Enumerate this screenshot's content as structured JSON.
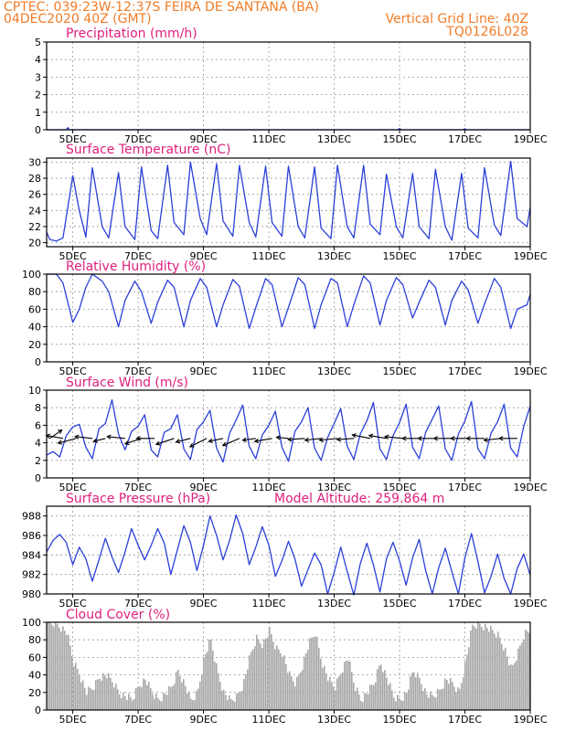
{
  "header": {
    "line1": "CPTEC:  039:23W-12:37S  FEIRA DE SANTANA (BA)",
    "line2": "04DEC2020 40Z (GMT)",
    "right1": "Vertical Grid Line: 40Z",
    "right2": "TQ0126L028"
  },
  "colors": {
    "header": "#f07c28",
    "title": "#e0207e",
    "line": "#2b3fd8",
    "bar": "#a8a8a8",
    "arrow": "#000000"
  },
  "x_axis": {
    "labels": [
      "5DEC",
      "7DEC",
      "9DEC",
      "11DEC",
      "13DEC",
      "15DEC",
      "17DEC",
      "19DEC"
    ],
    "range_days": [
      4.2,
      19.0
    ],
    "label_days": [
      5,
      7,
      9,
      11,
      13,
      15,
      17,
      19
    ]
  },
  "chart_data": [
    {
      "type": "line",
      "title": "Precipitation (mm/h)",
      "ylim": [
        0,
        5
      ],
      "yticks": [
        0,
        1,
        2,
        3,
        4,
        5
      ],
      "series": [
        {
          "name": "Precipitation",
          "x": [
            4.2,
            4.8,
            4.85,
            4.9,
            5.5,
            6.2,
            7.0,
            8.0,
            9.0,
            10.0,
            11.0,
            12.0,
            13.0,
            14.0,
            14.95,
            15.0,
            15.05,
            16.0,
            16.95,
            17.0,
            17.05,
            18.0,
            19.0
          ],
          "values": [
            0,
            0,
            0.12,
            0,
            0,
            0,
            0,
            0,
            0,
            0,
            0,
            0,
            0,
            0,
            0,
            0.07,
            0,
            0,
            0,
            0.05,
            0,
            0,
            0
          ]
        }
      ]
    },
    {
      "type": "line",
      "title": "Surface Temperature (nC)",
      "ylim": [
        19.5,
        30.5
      ],
      "yticks": [
        20,
        22,
        24,
        26,
        28,
        30
      ],
      "series": [
        {
          "name": "Temperature",
          "x": [
            4.2,
            4.3,
            4.5,
            4.7,
            5.0,
            5.2,
            5.4,
            5.6,
            5.9,
            6.1,
            6.4,
            6.6,
            6.9,
            7.1,
            7.4,
            7.6,
            7.9,
            8.1,
            8.4,
            8.6,
            8.9,
            9.1,
            9.4,
            9.6,
            9.9,
            10.1,
            10.4,
            10.6,
            10.9,
            11.1,
            11.4,
            11.6,
            11.9,
            12.1,
            12.4,
            12.6,
            12.9,
            13.1,
            13.4,
            13.6,
            13.9,
            14.1,
            14.4,
            14.6,
            14.9,
            15.1,
            15.4,
            15.6,
            15.9,
            16.1,
            16.4,
            16.6,
            16.9,
            17.1,
            17.4,
            17.6,
            17.9,
            18.1,
            18.4,
            18.6,
            18.9,
            19.0
          ],
          "values": [
            21.3,
            20.4,
            20.2,
            20.6,
            28.3,
            24.0,
            20.7,
            29.3,
            22.0,
            20.6,
            28.7,
            22.0,
            20.4,
            29.4,
            21.5,
            20.5,
            29.6,
            22.5,
            21.0,
            30.0,
            23.0,
            21.0,
            29.8,
            22.7,
            20.8,
            29.6,
            22.5,
            20.7,
            29.5,
            22.5,
            20.8,
            29.5,
            22.0,
            20.6,
            29.4,
            21.8,
            20.5,
            29.6,
            22.0,
            20.6,
            29.6,
            22.3,
            21.0,
            28.5,
            22.0,
            20.6,
            28.6,
            22.0,
            20.5,
            29.1,
            22.0,
            20.3,
            28.6,
            21.8,
            20.6,
            29.3,
            22.2,
            20.9,
            30.1,
            23.0,
            22.0,
            24.4
          ]
        }
      ]
    },
    {
      "type": "line",
      "title": "Relative Humidity (%)",
      "ylim": [
        0,
        100
      ],
      "yticks": [
        0,
        20,
        40,
        60,
        80,
        100
      ],
      "series": [
        {
          "name": "Relative Humidity",
          "x": [
            4.2,
            4.5,
            4.7,
            5.0,
            5.2,
            5.4,
            5.6,
            5.9,
            6.1,
            6.4,
            6.6,
            6.9,
            7.1,
            7.4,
            7.6,
            7.9,
            8.1,
            8.4,
            8.6,
            8.9,
            9.1,
            9.4,
            9.6,
            9.9,
            10.1,
            10.4,
            10.6,
            10.9,
            11.1,
            11.4,
            11.6,
            11.9,
            12.1,
            12.4,
            12.6,
            12.9,
            13.1,
            13.4,
            13.6,
            13.9,
            14.1,
            14.4,
            14.6,
            14.9,
            15.1,
            15.4,
            15.6,
            15.9,
            16.1,
            16.4,
            16.6,
            16.9,
            17.1,
            17.4,
            17.6,
            17.9,
            18.1,
            18.4,
            18.6,
            18.9,
            19.0
          ],
          "values": [
            100,
            100,
            90,
            45,
            60,
            85,
            100,
            92,
            80,
            40,
            70,
            92,
            80,
            44,
            68,
            93,
            85,
            40,
            70,
            95,
            85,
            40,
            65,
            94,
            86,
            38,
            62,
            95,
            88,
            40,
            62,
            96,
            88,
            38,
            65,
            95,
            90,
            40,
            65,
            98,
            90,
            42,
            70,
            96,
            88,
            50,
            68,
            93,
            85,
            42,
            70,
            92,
            82,
            44,
            66,
            95,
            85,
            38,
            60,
            65,
            77
          ]
        }
      ]
    },
    {
      "type": "line",
      "title": "Surface Wind (m/s)",
      "ylim": [
        0,
        10
      ],
      "yticks": [
        0,
        2,
        4,
        6,
        8,
        10
      ],
      "series": [
        {
          "name": "Wind Speed",
          "x": [
            4.2,
            4.4,
            4.6,
            4.8,
            5.0,
            5.2,
            5.4,
            5.6,
            5.8,
            6.0,
            6.2,
            6.4,
            6.6,
            6.8,
            7.0,
            7.2,
            7.4,
            7.6,
            7.8,
            8.0,
            8.2,
            8.4,
            8.6,
            8.8,
            9.0,
            9.2,
            9.4,
            9.6,
            9.8,
            10.0,
            10.2,
            10.4,
            10.6,
            10.8,
            11.0,
            11.2,
            11.4,
            11.6,
            11.8,
            12.0,
            12.2,
            12.4,
            12.6,
            12.8,
            13.0,
            13.2,
            13.4,
            13.6,
            13.8,
            14.0,
            14.2,
            14.4,
            14.6,
            14.8,
            15.0,
            15.2,
            15.4,
            15.6,
            15.8,
            16.0,
            16.2,
            16.4,
            16.6,
            16.8,
            17.0,
            17.2,
            17.4,
            17.6,
            17.8,
            18.0,
            18.2,
            18.4,
            18.6,
            18.8,
            19.0
          ],
          "values": [
            2.6,
            3.0,
            2.4,
            4.8,
            5.8,
            6.1,
            3.5,
            2.2,
            5.6,
            6.2,
            8.9,
            5.0,
            3.2,
            5.3,
            5.9,
            7.2,
            3.2,
            2.4,
            5.2,
            5.6,
            7.2,
            3.3,
            2.1,
            5.5,
            6.4,
            7.7,
            3.4,
            1.8,
            5.1,
            6.6,
            8.3,
            3.6,
            2.2,
            4.9,
            6.0,
            7.6,
            3.5,
            1.9,
            5.3,
            6.4,
            8.0,
            3.4,
            2.0,
            4.6,
            6.2,
            7.9,
            3.6,
            2.1,
            5.0,
            6.5,
            8.6,
            3.3,
            2.1,
            4.8,
            6.3,
            8.4,
            3.5,
            2.2,
            5.2,
            6.7,
            8.2,
            3.3,
            2.0,
            5.0,
            6.5,
            8.7,
            3.3,
            2.2,
            5.1,
            6.4,
            8.4,
            3.4,
            2.4,
            5.9,
            8.2
          ]
        }
      ],
      "arrows": {
        "note": "direction vectors (u,v) in m/s; arrows drawn from the 4.5 m/s baseline",
        "x": [
          4.3,
          4.7,
          5.1,
          5.6,
          6.0,
          6.6,
          7.1,
          7.5,
          8.1,
          8.6,
          9.1,
          9.6,
          10.1,
          10.6,
          11.1,
          11.6,
          12.1,
          12.6,
          13.1,
          13.6,
          14.1,
          14.6,
          15.1,
          15.6,
          16.1,
          16.6,
          17.1,
          17.6,
          18.1,
          18.6
        ],
        "u": [
          2.0,
          -2.8,
          -3.0,
          -2.9,
          -2.0,
          -3.0,
          -2.7,
          -3.0,
          -3.0,
          -2.4,
          -2.8,
          -2.4,
          -2.8,
          -2.2,
          -2.9,
          -2.0,
          -2.8,
          -2.7,
          -3.0,
          -2.8,
          -3.0,
          -2.9,
          -3.0,
          -2.8,
          -2.9,
          -3.0,
          -2.9,
          -3.0,
          -2.8,
          -3.0
        ],
        "v": [
          1.4,
          0.5,
          -0.8,
          0.3,
          -0.5,
          0.3,
          -0.9,
          0.0,
          -1.0,
          -0.6,
          -1.4,
          -0.5,
          -1.2,
          -0.3,
          -0.5,
          0.2,
          -0.2,
          -0.3,
          -0.3,
          -0.2,
          0.6,
          0.5,
          0.3,
          0.0,
          0.0,
          0.0,
          0.0,
          0.0,
          -0.3,
          0.0
        ]
      }
    },
    {
      "type": "line",
      "title": "Surface Pressure (hPa)",
      "subtitle": "Model Altitude: 259.864 m",
      "ylim": [
        980,
        989
      ],
      "yticks": [
        980,
        982,
        984,
        986,
        988
      ],
      "series": [
        {
          "name": "Surface Pressure",
          "x": [
            4.2,
            4.4,
            4.6,
            4.8,
            5.0,
            5.2,
            5.4,
            5.6,
            5.8,
            6.0,
            6.2,
            6.4,
            6.6,
            6.8,
            7.0,
            7.2,
            7.4,
            7.6,
            7.8,
            8.0,
            8.2,
            8.4,
            8.6,
            8.8,
            9.0,
            9.2,
            9.4,
            9.6,
            9.8,
            10.0,
            10.2,
            10.4,
            10.6,
            10.8,
            11.0,
            11.2,
            11.4,
            11.6,
            11.8,
            12.0,
            12.2,
            12.4,
            12.6,
            12.8,
            13.0,
            13.2,
            13.4,
            13.6,
            13.8,
            14.0,
            14.2,
            14.4,
            14.6,
            14.8,
            15.0,
            15.2,
            15.4,
            15.6,
            15.8,
            16.0,
            16.2,
            16.4,
            16.6,
            16.8,
            17.0,
            17.2,
            17.4,
            17.6,
            17.8,
            18.0,
            18.2,
            18.4,
            18.6,
            18.8,
            19.0
          ],
          "values": [
            984.3,
            985.5,
            986.1,
            985.3,
            983.0,
            984.8,
            983.6,
            981.3,
            983.5,
            985.7,
            983.8,
            982.2,
            984.3,
            986.7,
            985.0,
            983.5,
            985.0,
            986.7,
            985.2,
            982.0,
            984.5,
            987.0,
            985.3,
            982.4,
            985.0,
            988.0,
            986.0,
            983.5,
            985.5,
            988.1,
            986.2,
            983.0,
            984.8,
            986.9,
            985.0,
            981.8,
            983.4,
            985.4,
            983.6,
            980.8,
            982.5,
            984.2,
            983.0,
            980.0,
            982.2,
            984.8,
            982.3,
            979.9,
            983.1,
            985.2,
            983.0,
            980.2,
            983.6,
            985.3,
            983.4,
            980.9,
            983.7,
            985.6,
            982.4,
            980.0,
            982.7,
            984.7,
            982.3,
            980.0,
            983.7,
            986.2,
            983.3,
            980.1,
            981.8,
            984.1,
            981.6,
            980.0,
            982.6,
            984.1,
            981.9
          ]
        }
      ]
    },
    {
      "type": "bar",
      "title": "Cloud Cover (%)",
      "ylim": [
        0,
        100
      ],
      "yticks": [
        0,
        20,
        40,
        60,
        80,
        100
      ],
      "series": [
        {
          "name": "Cloud Cover",
          "x": [
            4.2,
            4.4,
            4.6,
            4.8,
            5.0,
            5.2,
            5.4,
            5.6,
            5.8,
            6.0,
            6.2,
            6.4,
            6.6,
            6.8,
            7.0,
            7.2,
            7.4,
            7.6,
            7.8,
            8.0,
            8.2,
            8.4,
            8.6,
            8.8,
            9.0,
            9.2,
            9.4,
            9.6,
            9.8,
            10.0,
            10.2,
            10.4,
            10.6,
            10.8,
            11.0,
            11.2,
            11.4,
            11.6,
            11.8,
            12.0,
            12.2,
            12.4,
            12.6,
            12.8,
            13.0,
            13.2,
            13.4,
            13.6,
            13.8,
            14.0,
            14.2,
            14.4,
            14.6,
            14.8,
            15.0,
            15.2,
            15.4,
            15.6,
            15.8,
            16.0,
            16.2,
            16.4,
            16.6,
            16.8,
            17.0,
            17.2,
            17.4,
            17.6,
            17.8,
            18.0,
            18.2,
            18.4,
            18.6,
            18.8,
            19.0
          ],
          "values": [
            97,
            99,
            95,
            88,
            55,
            40,
            20,
            25,
            38,
            40,
            32,
            20,
            15,
            12,
            28,
            35,
            20,
            12,
            18,
            25,
            45,
            30,
            10,
            20,
            60,
            80,
            45,
            20,
            10,
            15,
            30,
            60,
            82,
            75,
            90,
            70,
            65,
            40,
            30,
            50,
            75,
            88,
            55,
            35,
            25,
            45,
            60,
            28,
            12,
            20,
            30,
            55,
            35,
            15,
            12,
            20,
            45,
            35,
            18,
            15,
            22,
            35,
            30,
            20,
            55,
            95,
            98,
            95,
            90,
            85,
            70,
            45,
            65,
            88,
            92
          ]
        }
      ]
    }
  ]
}
